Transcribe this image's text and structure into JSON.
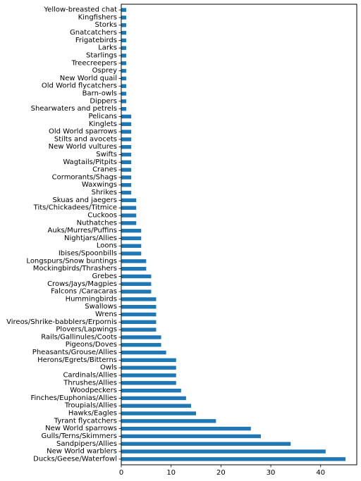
{
  "chart_data": {
    "type": "bar",
    "orientation": "horizontal",
    "title": "",
    "xlabel": "",
    "ylabel": "",
    "xlim": [
      0,
      47.25
    ],
    "xticks": [
      0,
      10,
      20,
      30,
      40
    ],
    "grid": false,
    "bar_color": "#1f77b4",
    "categories": [
      "Ducks/Geese/Waterfowl",
      "New World warblers",
      "Sandpipers/Allies",
      "Gulls/Terns/Skimmers",
      "New World sparrows",
      "Tyrant flycatchers",
      "Hawks/Eagles",
      "Troupials/Allies",
      "Finches/Euphonias/Allies",
      "Woodpeckers",
      "Thrushes/Allies",
      "Cardinals/Allies",
      "Owls",
      "Herons/Egrets/Bitterns",
      "Pheasants/Grouse/Allies",
      "Pigeons/Doves",
      "Rails/Gallinules/Coots",
      "Plovers/Lapwings",
      "Vireos/Shrike-babblers/Erpornis",
      "Wrens",
      "Swallows",
      "Hummingbirds",
      "Falcons /Caracaras",
      "Crows/Jays/Magpies",
      "Grebes",
      "Mockingbirds/Thrashers",
      "Longspurs/Snow buntings",
      "Ibises/Spoonbills",
      "Loons",
      "Nightjars/Allies",
      "Auks/Murres/Puffins",
      "Nuthatches",
      "Cuckoos",
      "Tits/Chickadees/Titmice",
      "Skuas and jaegers",
      "Shrikes",
      "Waxwings",
      "Cormorants/Shags",
      "Cranes",
      "Wagtails/Pitpits",
      "Swifts",
      "New World vultures",
      "Stilts and avocets",
      "Old World sparrows",
      "Kinglets",
      "Pelicans",
      "Shearwaters and petrels",
      "Dippers",
      "Barn-owls",
      "Old World flycatchers",
      "New World quail",
      "Osprey",
      "Treecreepers",
      "Starlings",
      "Larks",
      "Frigatebirds",
      "Gnatcatchers",
      "Storks",
      "Kingfishers",
      "Yellow-breasted chat"
    ],
    "values": [
      45,
      41,
      34,
      28,
      26,
      19,
      15,
      14,
      13,
      12,
      11,
      11,
      11,
      11,
      9,
      8,
      8,
      7,
      7,
      7,
      7,
      7,
      6,
      6,
      6,
      5,
      5,
      4,
      4,
      4,
      4,
      3,
      3,
      3,
      3,
      2,
      2,
      2,
      2,
      2,
      2,
      2,
      2,
      2,
      2,
      2,
      1,
      1,
      1,
      1,
      1,
      1,
      1,
      1,
      1,
      1,
      1,
      1,
      1,
      1
    ]
  }
}
